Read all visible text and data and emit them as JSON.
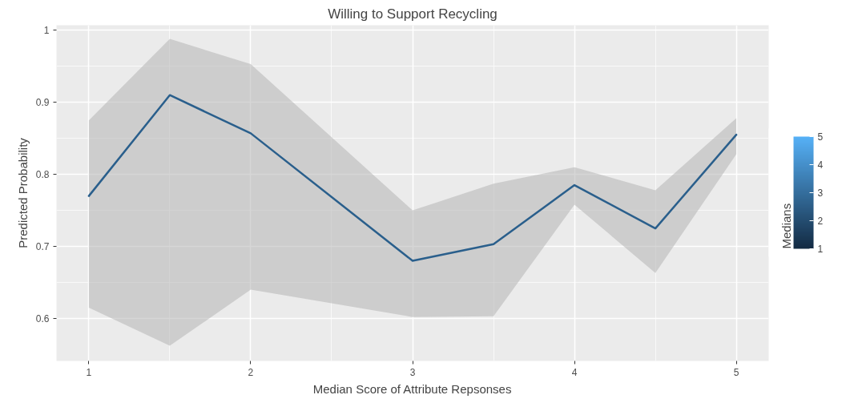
{
  "chart_data": {
    "type": "line",
    "title": "Willing to Support Recycling",
    "xlabel": "Median Score of Attribute Repsonses",
    "ylabel": "Predicted Probability",
    "legend_title": "Medians",
    "x": [
      1,
      1.5,
      2,
      3,
      3.5,
      4,
      4.5,
      5
    ],
    "series": [
      {
        "values": [
          0.77,
          0.91,
          0.857,
          0.68,
          0.703,
          0.785,
          0.725,
          0.855
        ],
        "lower": [
          0.615,
          0.562,
          0.64,
          0.602,
          0.603,
          0.758,
          0.663,
          0.828
        ],
        "upper": [
          0.875,
          0.988,
          0.953,
          0.75,
          0.787,
          0.81,
          0.778,
          0.878
        ],
        "color": "#2a5f8c"
      }
    ],
    "clim": [
      1,
      5
    ],
    "cticks": [
      1,
      2,
      3,
      4,
      5
    ],
    "colors": [
      "#132b43",
      "#56b1f7"
    ],
    "xlim": [
      0.8,
      5.2
    ],
    "ylim": [
      0.541,
      1.007
    ],
    "xticks": [
      1,
      2,
      3,
      4,
      5
    ],
    "yticks": [
      0.6,
      0.7,
      0.8,
      0.9,
      1.0
    ],
    "grid": true
  }
}
